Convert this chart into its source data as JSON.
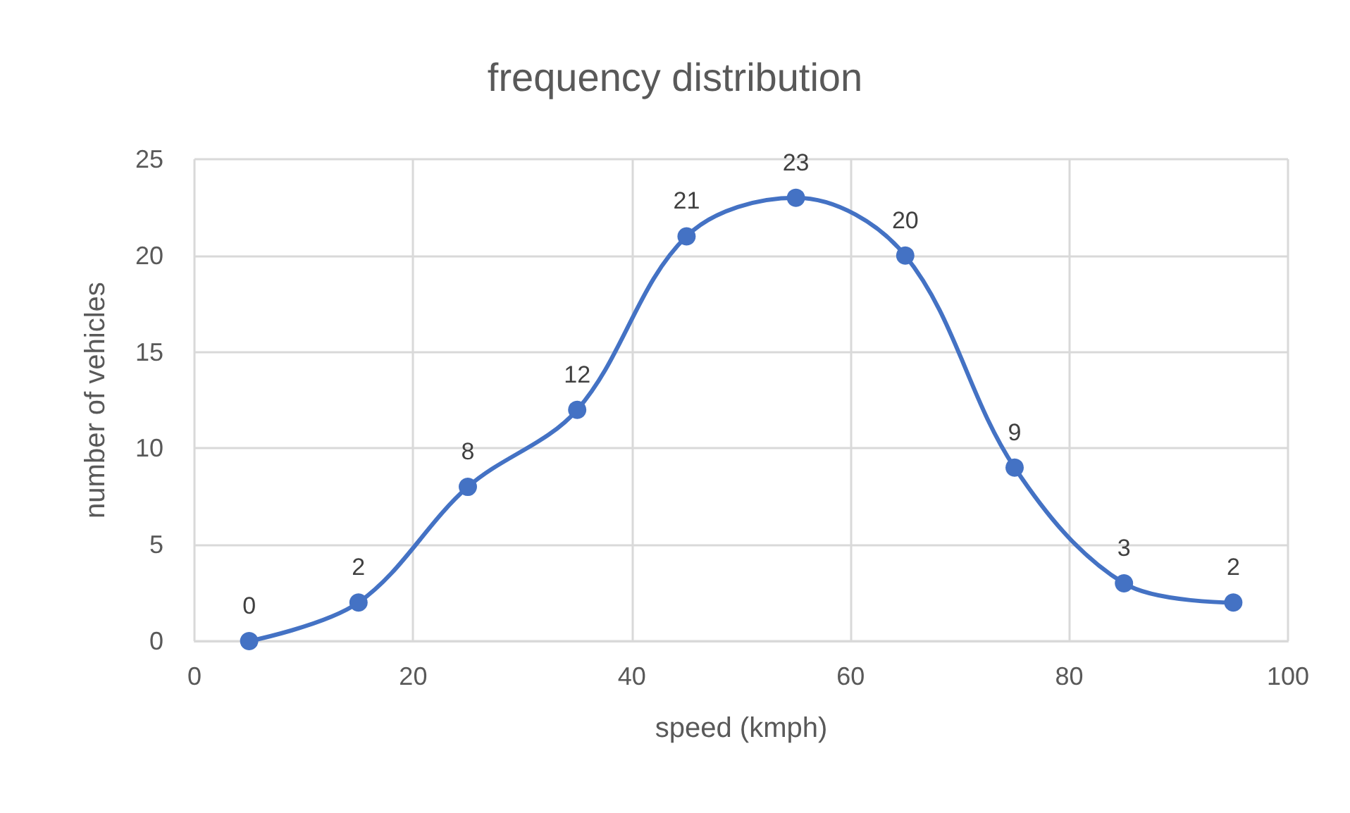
{
  "chart_data": {
    "type": "line",
    "title": "frequency distribution",
    "xlabel": "speed (kmph)",
    "ylabel": "number of vehicles",
    "x": [
      5,
      15,
      25,
      35,
      45,
      55,
      65,
      75,
      85,
      95
    ],
    "series": [
      {
        "color": "#4472c4",
        "values": [
          0,
          2,
          8,
          12,
          21,
          23,
          20,
          9,
          3,
          2
        ]
      }
    ],
    "xlim": [
      0,
      100
    ],
    "xticks": [
      0,
      20,
      40,
      60,
      80,
      100
    ],
    "ylim": [
      0,
      25
    ],
    "yticks": [
      0,
      5,
      10,
      15,
      20,
      25
    ],
    "grid": true,
    "marker": "circle",
    "line_style": "solid",
    "data_labels": true
  }
}
